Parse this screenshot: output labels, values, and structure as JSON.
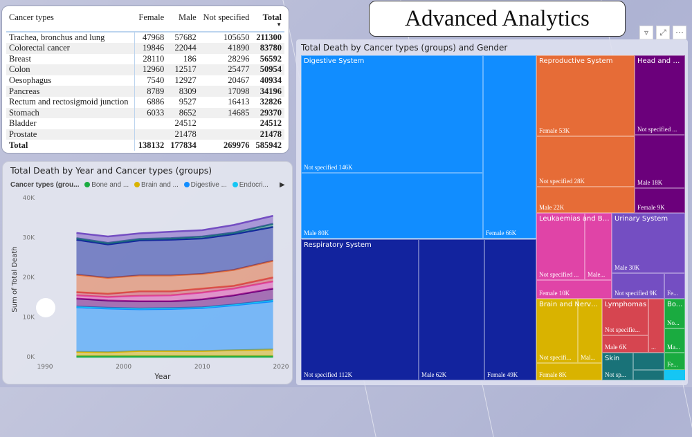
{
  "title": "Advanced Analytics",
  "visual_icons": [
    "filter-icon",
    "focus-mode-icon",
    "more-options-icon"
  ],
  "table": {
    "headers": [
      "Cancer types",
      "Female",
      "Male",
      "Not specified",
      "Total"
    ],
    "sort_column": "Total",
    "rows": [
      [
        "Trachea, bronchus and lung",
        "47968",
        "57682",
        "105650",
        "211300"
      ],
      [
        "Colorectal cancer",
        "19846",
        "22044",
        "41890",
        "83780"
      ],
      [
        "Breast",
        "28110",
        "186",
        "28296",
        "56592"
      ],
      [
        "Colon",
        "12960",
        "12517",
        "25477",
        "50954"
      ],
      [
        "Oesophagus",
        "7540",
        "12927",
        "20467",
        "40934"
      ],
      [
        "Pancreas",
        "8789",
        "8309",
        "17098",
        "34196"
      ],
      [
        "Rectum and rectosigmoid junction",
        "6886",
        "9527",
        "16413",
        "32826"
      ],
      [
        "Stomach",
        "6033",
        "8652",
        "14685",
        "29370"
      ],
      [
        "Bladder",
        "",
        "24512",
        "",
        "24512"
      ],
      [
        "Prostate",
        "",
        "21478",
        "",
        "21478"
      ]
    ],
    "total": [
      "Total",
      "138132",
      "177834",
      "269976",
      "585942"
    ]
  },
  "treemap": {
    "title": "Total Death by Cancer types (groups) and Gender",
    "groups": [
      {
        "name": "Digestive System",
        "color": "#118dff",
        "cells": [
          "Not specified 146K",
          "Male 80K",
          "Female 66K"
        ]
      },
      {
        "name": "Respiratory System",
        "color": "#12239e",
        "cells": [
          "Not specified 112K",
          "Male 62K",
          "Female 49K"
        ]
      },
      {
        "name": "Reproductive System",
        "color": "#e66c37",
        "cells": [
          "Female 53K",
          "Not specified 28K",
          "Male 22K"
        ]
      },
      {
        "name": "Head and N...",
        "color": "#6b007b",
        "cells": [
          "Not specified ...",
          "Male 18K",
          "Female 9K"
        ]
      },
      {
        "name": "Leukaemias and Blo...",
        "color": "#e044a7",
        "cells": [
          "Not specified ...",
          "Male...",
          "Female 10K"
        ]
      },
      {
        "name": "Urinary System",
        "color": "#744ec2",
        "cells": [
          "Male 30K",
          "Not specified 9K",
          "Fe..."
        ]
      },
      {
        "name": "Brain and Nervo...",
        "color": "#d9b300",
        "cells": [
          "Not specifi...",
          "Mal...",
          "Female 8K"
        ]
      },
      {
        "name": "Lymphomas",
        "color": "#d64550",
        "cells": [
          "Not specifie...",
          "Male 6K",
          "..."
        ]
      },
      {
        "name": "Skin",
        "color": "#197278",
        "cells": [
          "Not sp...",
          "",
          ""
        ]
      },
      {
        "name": "Bo...",
        "color": "#1aab40",
        "cells": [
          "No...",
          "Ma...",
          "Fe..."
        ]
      },
      {
        "name": "",
        "color": "#15c6f4",
        "cells": []
      }
    ]
  },
  "chart_data": {
    "type": "area",
    "stacked": true,
    "title": "Total Death by Year and Cancer types (groups)",
    "xlabel": "Year",
    "ylabel": "Sum of Total Death",
    "xlim": [
      1990,
      2020
    ],
    "ylim": [
      0,
      40000
    ],
    "xticks": [
      "1990",
      "2000",
      "2010",
      "2020"
    ],
    "yticks": [
      "0K",
      "10K",
      "20K",
      "30K",
      "40K"
    ],
    "legend": {
      "title": "Cancer types (grou...",
      "position": "top",
      "entries": [
        "Bone and ...",
        "Brain and ...",
        "Digestive ...",
        "Endocri..."
      ]
    },
    "x": [
      1994,
      1998,
      2002,
      2006,
      2010,
      2014,
      2019
    ],
    "series": [
      {
        "name": "Bone and ...",
        "color": "#1aab40",
        "values": [
          500,
          500,
          500,
          500,
          500,
          500,
          500
        ]
      },
      {
        "name": "Brain and ...",
        "color": "#d9b300",
        "values": [
          1100,
          1000,
          1300,
          1300,
          1300,
          1500,
          1700
        ]
      },
      {
        "name": "Digestive ...",
        "color": "#118dff",
        "values": [
          11200,
          11000,
          10500,
          10600,
          10800,
          11300,
          12100
        ]
      },
      {
        "name": "Endocri...",
        "color": "#15c6f4",
        "values": [
          200,
          200,
          200,
          200,
          200,
          200,
          300
        ]
      },
      {
        "color": "#6b007b",
        "values": [
          2000,
          1800,
          1800,
          1700,
          2000,
          2300,
          2900
        ]
      },
      {
        "color": "#e044a7",
        "values": [
          800,
          900,
          1400,
          1500,
          1700,
          1700,
          1800
        ]
      },
      {
        "color": "#d64550",
        "values": [
          800,
          800,
          1100,
          1000,
          1000,
          700,
          1000
        ]
      },
      {
        "color": "#e66c37",
        "values": [
          4400,
          4000,
          4000,
          4000,
          3700,
          4000,
          4200
        ]
      },
      {
        "color": "#12239e",
        "values": [
          8800,
          8400,
          8800,
          9000,
          8900,
          9000,
          8500
        ]
      },
      {
        "color": "#197278",
        "values": [
          400,
          400,
          400,
          400,
          500,
          400,
          800
        ]
      },
      {
        "color": "#744ec2",
        "values": [
          1300,
          1600,
          1400,
          1600,
          1600,
          1900,
          2000
        ]
      }
    ]
  }
}
